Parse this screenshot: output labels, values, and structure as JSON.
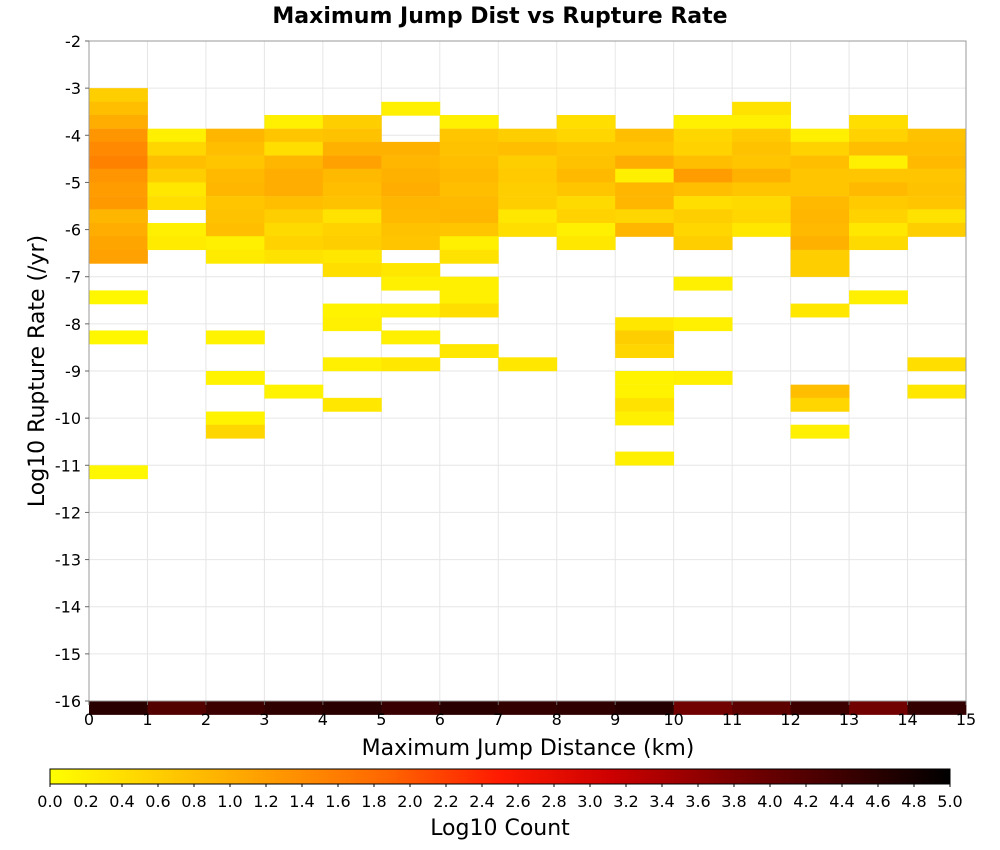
{
  "chart_data": {
    "type": "heatmap",
    "title": "Maximum Jump Dist vs Rupture Rate",
    "xlabel": "Maximum Jump Distance (km)",
    "ylabel": "Log10 Rupture Rate (/yr)",
    "xlim": [
      0,
      15
    ],
    "ylim": [
      -16,
      -2
    ],
    "x_ticks": [
      "0",
      "1",
      "2",
      "3",
      "4",
      "5",
      "6",
      "7",
      "8",
      "9",
      "10",
      "11",
      "12",
      "13",
      "14",
      "15"
    ],
    "y_ticks": [
      "-2",
      "-3",
      "-4",
      "-5",
      "-6",
      "-7",
      "-8",
      "-9",
      "-10",
      "-11",
      "-12",
      "-13",
      "-14",
      "-15",
      "-16"
    ],
    "x_bin_width": 1,
    "y_bin_height": 0.2857,
    "colorbar": {
      "label": "Log10 Count",
      "min": 0,
      "max": 5,
      "ticks": [
        "0.0",
        "0.2",
        "0.4",
        "0.6",
        "0.8",
        "1.0",
        "1.2",
        "1.4",
        "1.6",
        "1.8",
        "2.0",
        "2.2",
        "2.4",
        "2.6",
        "2.8",
        "3.0",
        "3.2",
        "3.4",
        "3.6",
        "3.8",
        "4.0",
        "4.2",
        "4.4",
        "4.6",
        "4.8",
        "5.0"
      ],
      "stops": [
        "#ffff00",
        "#ffcc00",
        "#ff9900",
        "#ff6600",
        "#ff1a00",
        "#cc0000",
        "#800000",
        "#400000",
        "#000000"
      ]
    },
    "cells": [
      {
        "x": 0,
        "y": -3.0,
        "v": 0.6
      },
      {
        "x": 0,
        "y": -3.29,
        "v": 0.8
      },
      {
        "x": 0,
        "y": -3.57,
        "v": 1.0
      },
      {
        "x": 0,
        "y": -3.86,
        "v": 1.3
      },
      {
        "x": 0,
        "y": -4.14,
        "v": 1.45
      },
      {
        "x": 0,
        "y": -4.43,
        "v": 1.55
      },
      {
        "x": 0,
        "y": -4.71,
        "v": 1.3
      },
      {
        "x": 0,
        "y": -5.0,
        "v": 1.2
      },
      {
        "x": 0,
        "y": -5.29,
        "v": 1.25
      },
      {
        "x": 0,
        "y": -5.57,
        "v": 0.9
      },
      {
        "x": 0,
        "y": -5.86,
        "v": 1.0
      },
      {
        "x": 0,
        "y": -6.14,
        "v": 1.1
      },
      {
        "x": 0,
        "y": -6.43,
        "v": 1.15
      },
      {
        "x": 0,
        "y": -7.29,
        "v": 0.1
      },
      {
        "x": 0,
        "y": -8.14,
        "v": 0.1
      },
      {
        "x": 0,
        "y": -11.0,
        "v": 0.1
      },
      {
        "x": 1,
        "y": -3.86,
        "v": 0.2
      },
      {
        "x": 1,
        "y": -4.14,
        "v": 0.5
      },
      {
        "x": 1,
        "y": -4.43,
        "v": 0.8
      },
      {
        "x": 1,
        "y": -4.71,
        "v": 0.6
      },
      {
        "x": 1,
        "y": -5.0,
        "v": 0.3
      },
      {
        "x": 1,
        "y": -5.29,
        "v": 0.4
      },
      {
        "x": 1,
        "y": -5.86,
        "v": 0.2
      },
      {
        "x": 1,
        "y": -6.14,
        "v": 0.25
      },
      {
        "x": 2,
        "y": -3.86,
        "v": 0.9
      },
      {
        "x": 2,
        "y": -4.14,
        "v": 0.8
      },
      {
        "x": 2,
        "y": -4.43,
        "v": 0.7
      },
      {
        "x": 2,
        "y": -4.71,
        "v": 0.85
      },
      {
        "x": 2,
        "y": -5.0,
        "v": 0.9
      },
      {
        "x": 2,
        "y": -5.29,
        "v": 0.7
      },
      {
        "x": 2,
        "y": -5.57,
        "v": 0.75
      },
      {
        "x": 2,
        "y": -5.86,
        "v": 0.8
      },
      {
        "x": 2,
        "y": -6.14,
        "v": 0.2
      },
      {
        "x": 2,
        "y": -6.43,
        "v": 0.25
      },
      {
        "x": 2,
        "y": -8.14,
        "v": 0.15
      },
      {
        "x": 2,
        "y": -9.0,
        "v": 0.15
      },
      {
        "x": 2,
        "y": -9.86,
        "v": 0.15
      },
      {
        "x": 2,
        "y": -10.14,
        "v": 0.5
      },
      {
        "x": 3,
        "y": -3.57,
        "v": 0.2
      },
      {
        "x": 3,
        "y": -3.86,
        "v": 0.7
      },
      {
        "x": 3,
        "y": -4.14,
        "v": 0.4
      },
      {
        "x": 3,
        "y": -4.43,
        "v": 0.9
      },
      {
        "x": 3,
        "y": -4.71,
        "v": 1.0
      },
      {
        "x": 3,
        "y": -5.0,
        "v": 1.0
      },
      {
        "x": 3,
        "y": -5.29,
        "v": 0.8
      },
      {
        "x": 3,
        "y": -5.57,
        "v": 0.6
      },
      {
        "x": 3,
        "y": -5.86,
        "v": 0.45
      },
      {
        "x": 3,
        "y": -6.14,
        "v": 0.55
      },
      {
        "x": 3,
        "y": -6.43,
        "v": 0.35
      },
      {
        "x": 3,
        "y": -9.29,
        "v": 0.15
      },
      {
        "x": 4,
        "y": -3.57,
        "v": 0.6
      },
      {
        "x": 4,
        "y": -3.86,
        "v": 0.75
      },
      {
        "x": 4,
        "y": -4.14,
        "v": 0.95
      },
      {
        "x": 4,
        "y": -4.43,
        "v": 1.15
      },
      {
        "x": 4,
        "y": -4.71,
        "v": 0.85
      },
      {
        "x": 4,
        "y": -5.0,
        "v": 0.8
      },
      {
        "x": 4,
        "y": -5.29,
        "v": 0.75
      },
      {
        "x": 4,
        "y": -5.57,
        "v": 0.35
      },
      {
        "x": 4,
        "y": -5.86,
        "v": 0.55
      },
      {
        "x": 4,
        "y": -6.14,
        "v": 0.6
      },
      {
        "x": 4,
        "y": -6.43,
        "v": 0.3
      },
      {
        "x": 4,
        "y": -6.71,
        "v": 0.4
      },
      {
        "x": 4,
        "y": -7.57,
        "v": 0.15
      },
      {
        "x": 4,
        "y": -7.86,
        "v": 0.2
      },
      {
        "x": 4,
        "y": -8.71,
        "v": 0.2
      },
      {
        "x": 4,
        "y": -9.57,
        "v": 0.3
      },
      {
        "x": 5,
        "y": -3.29,
        "v": 0.2
      },
      {
        "x": 5,
        "y": -4.14,
        "v": 0.95
      },
      {
        "x": 5,
        "y": -4.43,
        "v": 0.9
      },
      {
        "x": 5,
        "y": -4.71,
        "v": 0.95
      },
      {
        "x": 5,
        "y": -5.0,
        "v": 1.0
      },
      {
        "x": 5,
        "y": -5.29,
        "v": 0.9
      },
      {
        "x": 5,
        "y": -5.57,
        "v": 0.85
      },
      {
        "x": 5,
        "y": -5.86,
        "v": 0.75
      },
      {
        "x": 5,
        "y": -6.14,
        "v": 0.7
      },
      {
        "x": 5,
        "y": -6.71,
        "v": 0.3
      },
      {
        "x": 5,
        "y": -7.0,
        "v": 0.2
      },
      {
        "x": 5,
        "y": -7.57,
        "v": 0.2
      },
      {
        "x": 5,
        "y": -8.14,
        "v": 0.2
      },
      {
        "x": 5,
        "y": -8.71,
        "v": 0.3
      },
      {
        "x": 6,
        "y": -3.57,
        "v": 0.2
      },
      {
        "x": 6,
        "y": -3.86,
        "v": 0.7
      },
      {
        "x": 6,
        "y": -4.14,
        "v": 0.75
      },
      {
        "x": 6,
        "y": -4.43,
        "v": 0.8
      },
      {
        "x": 6,
        "y": -4.71,
        "v": 0.85
      },
      {
        "x": 6,
        "y": -5.0,
        "v": 0.8
      },
      {
        "x": 6,
        "y": -5.29,
        "v": 0.85
      },
      {
        "x": 6,
        "y": -5.57,
        "v": 0.9
      },
      {
        "x": 6,
        "y": -5.86,
        "v": 0.7
      },
      {
        "x": 6,
        "y": -6.14,
        "v": 0.2
      },
      {
        "x": 6,
        "y": -6.43,
        "v": 0.35
      },
      {
        "x": 6,
        "y": -7.0,
        "v": 0.2
      },
      {
        "x": 6,
        "y": -7.29,
        "v": 0.2
      },
      {
        "x": 6,
        "y": -7.57,
        "v": 0.4
      },
      {
        "x": 6,
        "y": -8.43,
        "v": 0.3
      },
      {
        "x": 7,
        "y": -3.86,
        "v": 0.6
      },
      {
        "x": 7,
        "y": -4.14,
        "v": 0.8
      },
      {
        "x": 7,
        "y": -4.43,
        "v": 0.6
      },
      {
        "x": 7,
        "y": -4.71,
        "v": 0.65
      },
      {
        "x": 7,
        "y": -5.0,
        "v": 0.6
      },
      {
        "x": 7,
        "y": -5.29,
        "v": 0.6
      },
      {
        "x": 7,
        "y": -5.57,
        "v": 0.3
      },
      {
        "x": 7,
        "y": -5.86,
        "v": 0.4
      },
      {
        "x": 7,
        "y": -8.71,
        "v": 0.3
      },
      {
        "x": 8,
        "y": -3.57,
        "v": 0.4
      },
      {
        "x": 8,
        "y": -3.86,
        "v": 0.5
      },
      {
        "x": 8,
        "y": -4.14,
        "v": 0.7
      },
      {
        "x": 8,
        "y": -4.43,
        "v": 0.75
      },
      {
        "x": 8,
        "y": -4.71,
        "v": 0.85
      },
      {
        "x": 8,
        "y": -5.0,
        "v": 0.7
      },
      {
        "x": 8,
        "y": -5.29,
        "v": 0.45
      },
      {
        "x": 8,
        "y": -5.57,
        "v": 0.55
      },
      {
        "x": 8,
        "y": -5.86,
        "v": 0.2
      },
      {
        "x": 8,
        "y": -6.14,
        "v": 0.3
      },
      {
        "x": 9,
        "y": -3.86,
        "v": 0.8
      },
      {
        "x": 9,
        "y": -4.14,
        "v": 0.7
      },
      {
        "x": 9,
        "y": -4.43,
        "v": 1.0
      },
      {
        "x": 9,
        "y": -4.71,
        "v": 0.2
      },
      {
        "x": 9,
        "y": -5.0,
        "v": 0.9
      },
      {
        "x": 9,
        "y": -5.29,
        "v": 0.9
      },
      {
        "x": 9,
        "y": -5.57,
        "v": 0.5
      },
      {
        "x": 9,
        "y": -5.86,
        "v": 0.9
      },
      {
        "x": 9,
        "y": -7.86,
        "v": 0.3
      },
      {
        "x": 9,
        "y": -8.14,
        "v": 0.6
      },
      {
        "x": 9,
        "y": -8.43,
        "v": 0.5
      },
      {
        "x": 9,
        "y": -9.0,
        "v": 0.15
      },
      {
        "x": 9,
        "y": -9.29,
        "v": 0.15
      },
      {
        "x": 9,
        "y": -9.57,
        "v": 0.35
      },
      {
        "x": 9,
        "y": -9.86,
        "v": 0.2
      },
      {
        "x": 9,
        "y": -10.71,
        "v": 0.2
      },
      {
        "x": 10,
        "y": -3.57,
        "v": 0.2
      },
      {
        "x": 10,
        "y": -3.86,
        "v": 0.5
      },
      {
        "x": 10,
        "y": -4.14,
        "v": 0.55
      },
      {
        "x": 10,
        "y": -4.43,
        "v": 0.8
      },
      {
        "x": 10,
        "y": -4.71,
        "v": 1.2
      },
      {
        "x": 10,
        "y": -5.0,
        "v": 0.8
      },
      {
        "x": 10,
        "y": -5.29,
        "v": 0.4
      },
      {
        "x": 10,
        "y": -5.57,
        "v": 0.6
      },
      {
        "x": 10,
        "y": -5.86,
        "v": 0.5
      },
      {
        "x": 10,
        "y": -6.14,
        "v": 0.6
      },
      {
        "x": 10,
        "y": -7.0,
        "v": 0.2
      },
      {
        "x": 10,
        "y": -7.86,
        "v": 0.2
      },
      {
        "x": 10,
        "y": -9.0,
        "v": 0.2
      },
      {
        "x": 11,
        "y": -3.29,
        "v": 0.35
      },
      {
        "x": 11,
        "y": -3.57,
        "v": 0.2
      },
      {
        "x": 11,
        "y": -3.86,
        "v": 0.65
      },
      {
        "x": 11,
        "y": -4.14,
        "v": 0.75
      },
      {
        "x": 11,
        "y": -4.43,
        "v": 0.7
      },
      {
        "x": 11,
        "y": -4.71,
        "v": 0.95
      },
      {
        "x": 11,
        "y": -5.0,
        "v": 0.7
      },
      {
        "x": 11,
        "y": -5.29,
        "v": 0.45
      },
      {
        "x": 11,
        "y": -5.57,
        "v": 0.5
      },
      {
        "x": 11,
        "y": -5.86,
        "v": 0.3
      },
      {
        "x": 12,
        "y": -3.86,
        "v": 0.2
      },
      {
        "x": 12,
        "y": -4.14,
        "v": 0.55
      },
      {
        "x": 12,
        "y": -4.43,
        "v": 0.8
      },
      {
        "x": 12,
        "y": -4.71,
        "v": 0.7
      },
      {
        "x": 12,
        "y": -5.0,
        "v": 0.7
      },
      {
        "x": 12,
        "y": -5.29,
        "v": 0.85
      },
      {
        "x": 12,
        "y": -5.57,
        "v": 0.9
      },
      {
        "x": 12,
        "y": -5.86,
        "v": 0.85
      },
      {
        "x": 12,
        "y": -6.14,
        "v": 0.95
      },
      {
        "x": 12,
        "y": -6.43,
        "v": 0.6
      },
      {
        "x": 12,
        "y": -6.71,
        "v": 0.6
      },
      {
        "x": 12,
        "y": -7.57,
        "v": 0.3
      },
      {
        "x": 12,
        "y": -9.29,
        "v": 0.8
      },
      {
        "x": 12,
        "y": -9.57,
        "v": 0.5
      },
      {
        "x": 12,
        "y": -10.14,
        "v": 0.2
      },
      {
        "x": 13,
        "y": -3.57,
        "v": 0.4
      },
      {
        "x": 13,
        "y": -3.86,
        "v": 0.55
      },
      {
        "x": 13,
        "y": -4.14,
        "v": 0.8
      },
      {
        "x": 13,
        "y": -4.43,
        "v": 0.2
      },
      {
        "x": 13,
        "y": -4.71,
        "v": 0.7
      },
      {
        "x": 13,
        "y": -5.0,
        "v": 0.85
      },
      {
        "x": 13,
        "y": -5.29,
        "v": 0.65
      },
      {
        "x": 13,
        "y": -5.57,
        "v": 0.55
      },
      {
        "x": 13,
        "y": -5.86,
        "v": 0.3
      },
      {
        "x": 13,
        "y": -6.14,
        "v": 0.45
      },
      {
        "x": 13,
        "y": -7.29,
        "v": 0.2
      },
      {
        "x": 14,
        "y": -3.86,
        "v": 0.75
      },
      {
        "x": 14,
        "y": -4.14,
        "v": 0.8
      },
      {
        "x": 14,
        "y": -4.43,
        "v": 0.85
      },
      {
        "x": 14,
        "y": -4.71,
        "v": 0.7
      },
      {
        "x": 14,
        "y": -5.0,
        "v": 0.75
      },
      {
        "x": 14,
        "y": -5.29,
        "v": 0.7
      },
      {
        "x": 14,
        "y": -5.57,
        "v": 0.35
      },
      {
        "x": 14,
        "y": -5.86,
        "v": 0.6
      },
      {
        "x": 14,
        "y": -8.71,
        "v": 0.4
      },
      {
        "x": 14,
        "y": -9.29,
        "v": 0.3
      },
      {
        "x": 0,
        "y": -16.0,
        "v": 4.6
      },
      {
        "x": 1,
        "y": -16.0,
        "v": 4.2
      },
      {
        "x": 2,
        "y": -16.0,
        "v": 4.4
      },
      {
        "x": 3,
        "y": -16.0,
        "v": 4.55
      },
      {
        "x": 4,
        "y": -16.0,
        "v": 4.6
      },
      {
        "x": 5,
        "y": -16.0,
        "v": 4.45
      },
      {
        "x": 6,
        "y": -16.0,
        "v": 4.6
      },
      {
        "x": 7,
        "y": -16.0,
        "v": 4.5
      },
      {
        "x": 8,
        "y": -16.0,
        "v": 4.55
      },
      {
        "x": 9,
        "y": -16.0,
        "v": 4.65
      },
      {
        "x": 10,
        "y": -16.0,
        "v": 3.9
      },
      {
        "x": 11,
        "y": -16.0,
        "v": 4.1
      },
      {
        "x": 12,
        "y": -16.0,
        "v": 4.4
      },
      {
        "x": 13,
        "y": -16.0,
        "v": 3.9
      },
      {
        "x": 14,
        "y": -16.0,
        "v": 4.5
      }
    ]
  }
}
